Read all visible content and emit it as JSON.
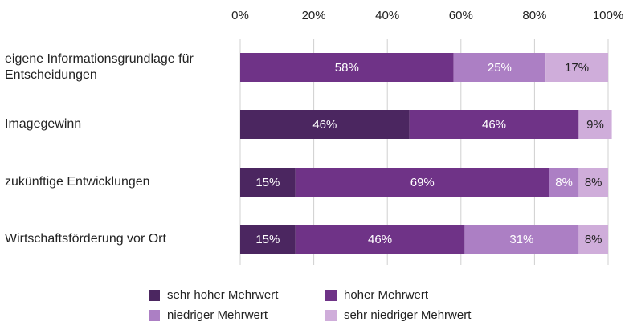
{
  "chart_data": {
    "type": "stacked-bar-horizontal",
    "categories": [
      "eigene Informationsgrundlage für Entscheidungen",
      "Imagegewinn",
      "zukünftige Entwicklungen",
      "Wirtschaftsförderung vor Ort"
    ],
    "series": [
      {
        "name": "sehr hoher Mehrwert",
        "color": "#4b2660",
        "values": [
          null,
          46,
          15,
          15
        ],
        "value_labels": [
          null,
          "46%",
          "15%",
          "15%"
        ]
      },
      {
        "name": "hoher Mehrwert",
        "color": "#6f3387",
        "values": [
          58,
          46,
          69,
          46
        ],
        "value_labels": [
          "58%",
          "46%",
          "69%",
          "46%"
        ]
      },
      {
        "name": "niedriger Mehrwert",
        "color": "#ac7fc4",
        "values": [
          25,
          null,
          8,
          31
        ],
        "value_labels": [
          "25%",
          null,
          "8%",
          "31%"
        ]
      },
      {
        "name": "sehr niedriger Mehrwert",
        "color": "#cfadda",
        "values": [
          17,
          9,
          8,
          8
        ],
        "value_labels": [
          "17%",
          "9%",
          "8%",
          "8%"
        ]
      }
    ],
    "xlim": [
      0,
      100
    ],
    "xticks": [
      {
        "value": 0,
        "label": "0%"
      },
      {
        "value": 20,
        "label": "20%"
      },
      {
        "value": 40,
        "label": "40%"
      },
      {
        "value": 60,
        "label": "60%"
      },
      {
        "value": 80,
        "label": "80%"
      },
      {
        "value": 100,
        "label": "100%"
      }
    ],
    "grid": true,
    "legend": "bottom"
  }
}
